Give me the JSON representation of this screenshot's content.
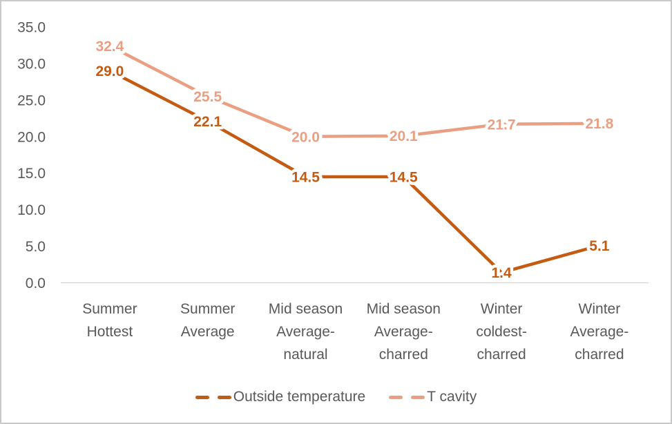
{
  "chart_data": {
    "type": "line",
    "categories": [
      "Summer Hottest",
      "Summer Average",
      "Mid season Average-natural",
      "Mid season Average-charred",
      "Winter coldest-charred",
      "Winter Average-charred"
    ],
    "category_label_lines": [
      [
        "Summer",
        "Hottest"
      ],
      [
        "Summer",
        "Average"
      ],
      [
        "Mid season",
        "Average-",
        "natural"
      ],
      [
        "Mid season",
        "Average-",
        "charred"
      ],
      [
        "Winter",
        "coldest-",
        "charred"
      ],
      [
        "Winter",
        "Average-",
        "charred"
      ]
    ],
    "series": [
      {
        "name": "Outside temperature",
        "color": "#C55A11",
        "values": [
          29.0,
          22.1,
          14.5,
          14.5,
          1.4,
          5.1
        ]
      },
      {
        "name": "T cavity",
        "color": "#EB9F82",
        "values": [
          32.4,
          25.5,
          20.0,
          20.1,
          21.7,
          21.8
        ]
      }
    ],
    "yticks": [
      35.0,
      30.0,
      25.0,
      20.0,
      15.0,
      10.0,
      5.0,
      0.0
    ],
    "ylim": [
      0,
      35
    ],
    "tick_decimals": 1,
    "data_labels": true,
    "grid": false,
    "legend_position": "bottom",
    "title": "",
    "xlabel": "",
    "ylabel": "",
    "axis_text_color": "#595959",
    "axis_line_color": "#D9D9D9",
    "background_color": "#FFFFFF",
    "border_color": "#C9C9C9"
  }
}
